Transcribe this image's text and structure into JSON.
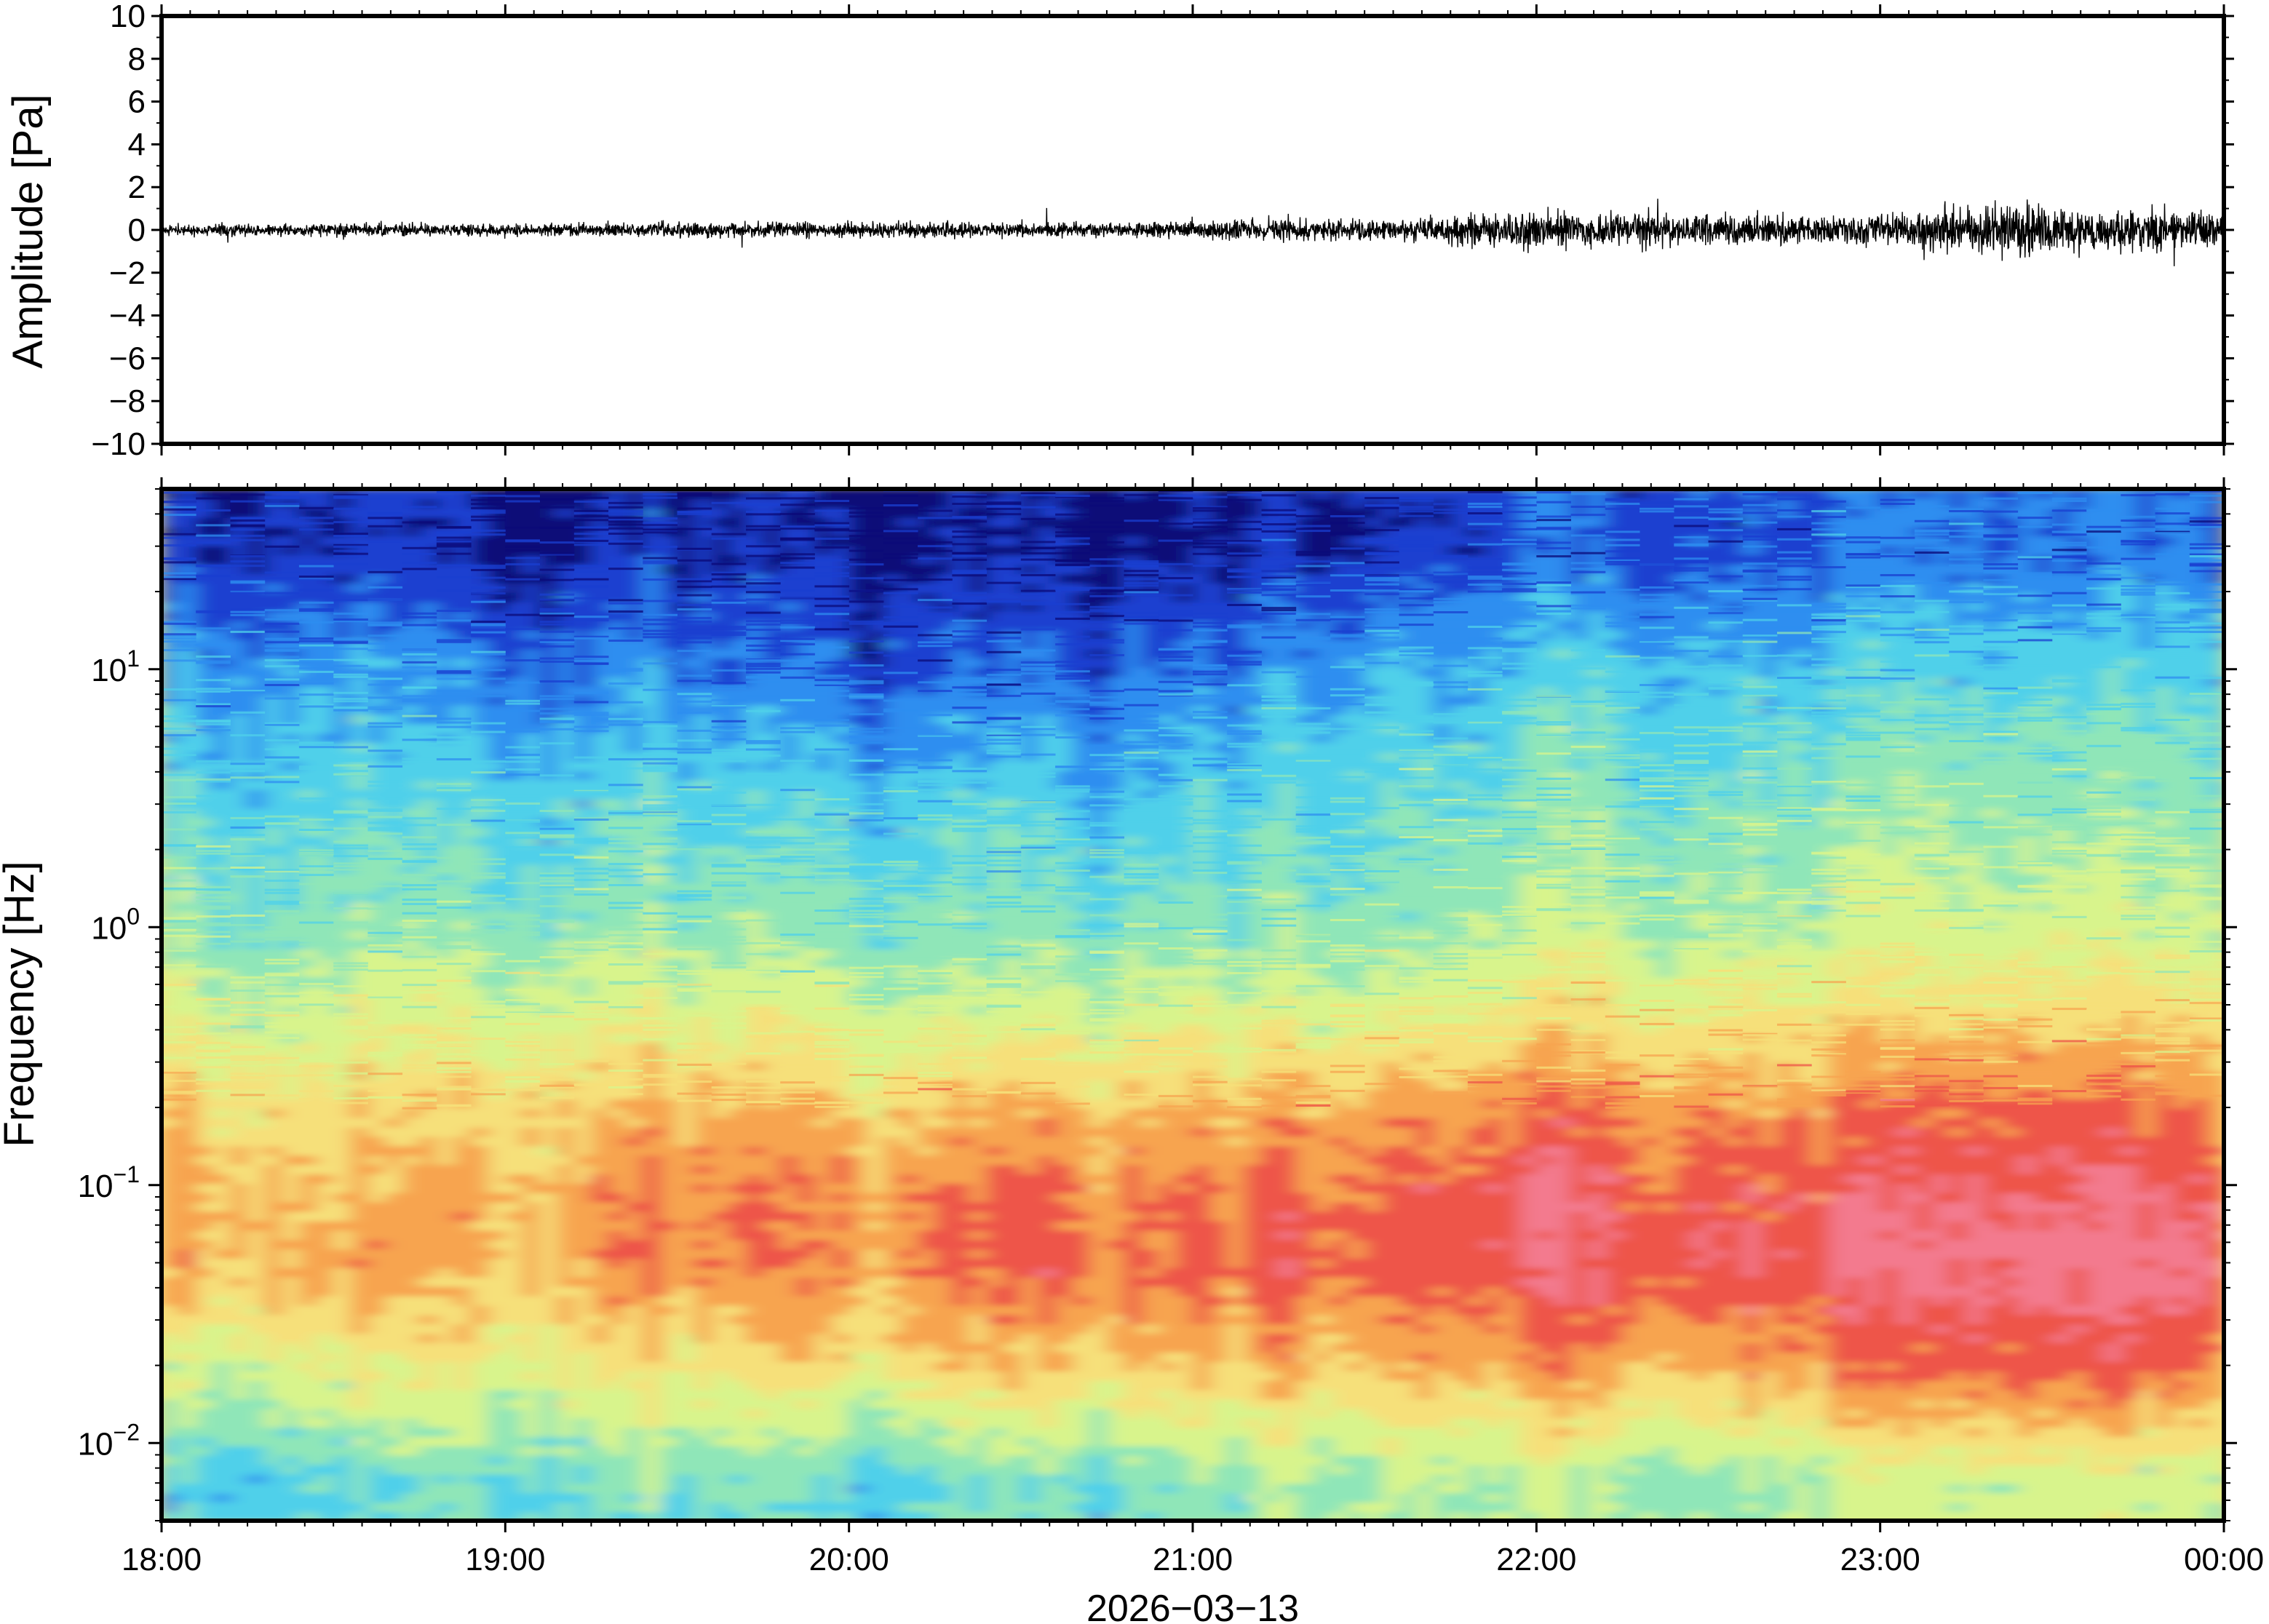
{
  "chart_data": [
    {
      "type": "line",
      "panel": "waveform",
      "ylabel": "Amplitude [Pa]",
      "ylim": [
        -10,
        10
      ],
      "yticks": [
        10,
        8,
        6,
        4,
        2,
        0,
        -2,
        -4,
        -6,
        -8,
        -10
      ],
      "ytick_labels": [
        "10",
        "8",
        "6",
        "4",
        "2",
        "0",
        "−2",
        "−4",
        "−6",
        "−8",
        "−10"
      ],
      "xlim": [
        "18:00",
        "00:00"
      ],
      "series": [
        {
          "color": "#000000",
          "x_hours": [
            18.0,
            18.5,
            19.0,
            19.5,
            20.0,
            20.5,
            21.0,
            21.3,
            21.6,
            21.75,
            22.0,
            22.5,
            23.0,
            23.2,
            23.4,
            23.6,
            24.0
          ],
          "envelope": [
            0.4,
            0.45,
            0.45,
            0.5,
            0.55,
            0.5,
            0.6,
            0.8,
            0.7,
            1.0,
            1.3,
            1.1,
            1.1,
            1.6,
            1.9,
            1.4,
            1.3
          ]
        }
      ]
    },
    {
      "type": "heatmap",
      "panel": "spectrogram",
      "ylabel": "Frequency [Hz]",
      "yscale": "log",
      "ylim": [
        0.005,
        50
      ],
      "yticks": [
        0.01,
        0.1,
        1,
        10
      ],
      "ytick_labels": [
        {
          "base": "10",
          "exp": "−2"
        },
        {
          "base": "10",
          "exp": "−1"
        },
        {
          "base": "10",
          "exp": "0"
        },
        {
          "base": "10",
          "exp": "1"
        }
      ],
      "xlabel": "2026−03−13",
      "xticks": [
        "18:00",
        "19:00",
        "20:00",
        "21:00",
        "22:00",
        "23:00",
        "00:00"
      ],
      "colormap": [
        "#0b0a78",
        "#1a3fd0",
        "#2e8ef0",
        "#4fd0ea",
        "#8fe6b8",
        "#d8f48c",
        "#f6e07a",
        "#f7a450",
        "#ee5448",
        "#f37a8e"
      ],
      "time_bins_hours": [
        18.0,
        18.5,
        19.0,
        19.5,
        20.0,
        20.5,
        21.0,
        21.5,
        22.0,
        22.5,
        23.0,
        23.5,
        24.0
      ],
      "freq_bins_hz": [
        0.007,
        0.02,
        0.05,
        0.1,
        0.2,
        0.5,
        1,
        3,
        10,
        30
      ],
      "power_levels_0_to_1": [
        [
          0.35,
          0.55,
          0.75,
          0.75,
          0.7,
          0.55,
          0.45,
          0.38,
          0.28,
          0.12
        ],
        [
          0.38,
          0.6,
          0.75,
          0.7,
          0.65,
          0.55,
          0.45,
          0.38,
          0.28,
          0.12
        ],
        [
          0.4,
          0.6,
          0.72,
          0.72,
          0.68,
          0.55,
          0.45,
          0.36,
          0.22,
          0.08
        ],
        [
          0.4,
          0.62,
          0.78,
          0.78,
          0.7,
          0.55,
          0.45,
          0.36,
          0.22,
          0.08
        ],
        [
          0.38,
          0.65,
          0.8,
          0.78,
          0.7,
          0.55,
          0.44,
          0.36,
          0.2,
          0.08
        ],
        [
          0.4,
          0.68,
          0.82,
          0.8,
          0.7,
          0.52,
          0.42,
          0.34,
          0.18,
          0.06
        ],
        [
          0.45,
          0.7,
          0.85,
          0.8,
          0.72,
          0.55,
          0.44,
          0.36,
          0.22,
          0.08
        ],
        [
          0.5,
          0.72,
          0.85,
          0.82,
          0.75,
          0.55,
          0.46,
          0.4,
          0.3,
          0.12
        ],
        [
          0.5,
          0.75,
          0.9,
          0.88,
          0.8,
          0.62,
          0.52,
          0.44,
          0.34,
          0.18
        ],
        [
          0.48,
          0.75,
          0.9,
          0.86,
          0.78,
          0.62,
          0.52,
          0.44,
          0.34,
          0.18
        ],
        [
          0.52,
          0.8,
          0.92,
          0.88,
          0.8,
          0.64,
          0.54,
          0.46,
          0.36,
          0.2
        ],
        [
          0.55,
          0.85,
          0.95,
          0.9,
          0.82,
          0.64,
          0.54,
          0.46,
          0.36,
          0.2
        ],
        [
          0.5,
          0.8,
          0.92,
          0.88,
          0.78,
          0.62,
          0.52,
          0.44,
          0.34,
          0.2
        ]
      ]
    }
  ]
}
